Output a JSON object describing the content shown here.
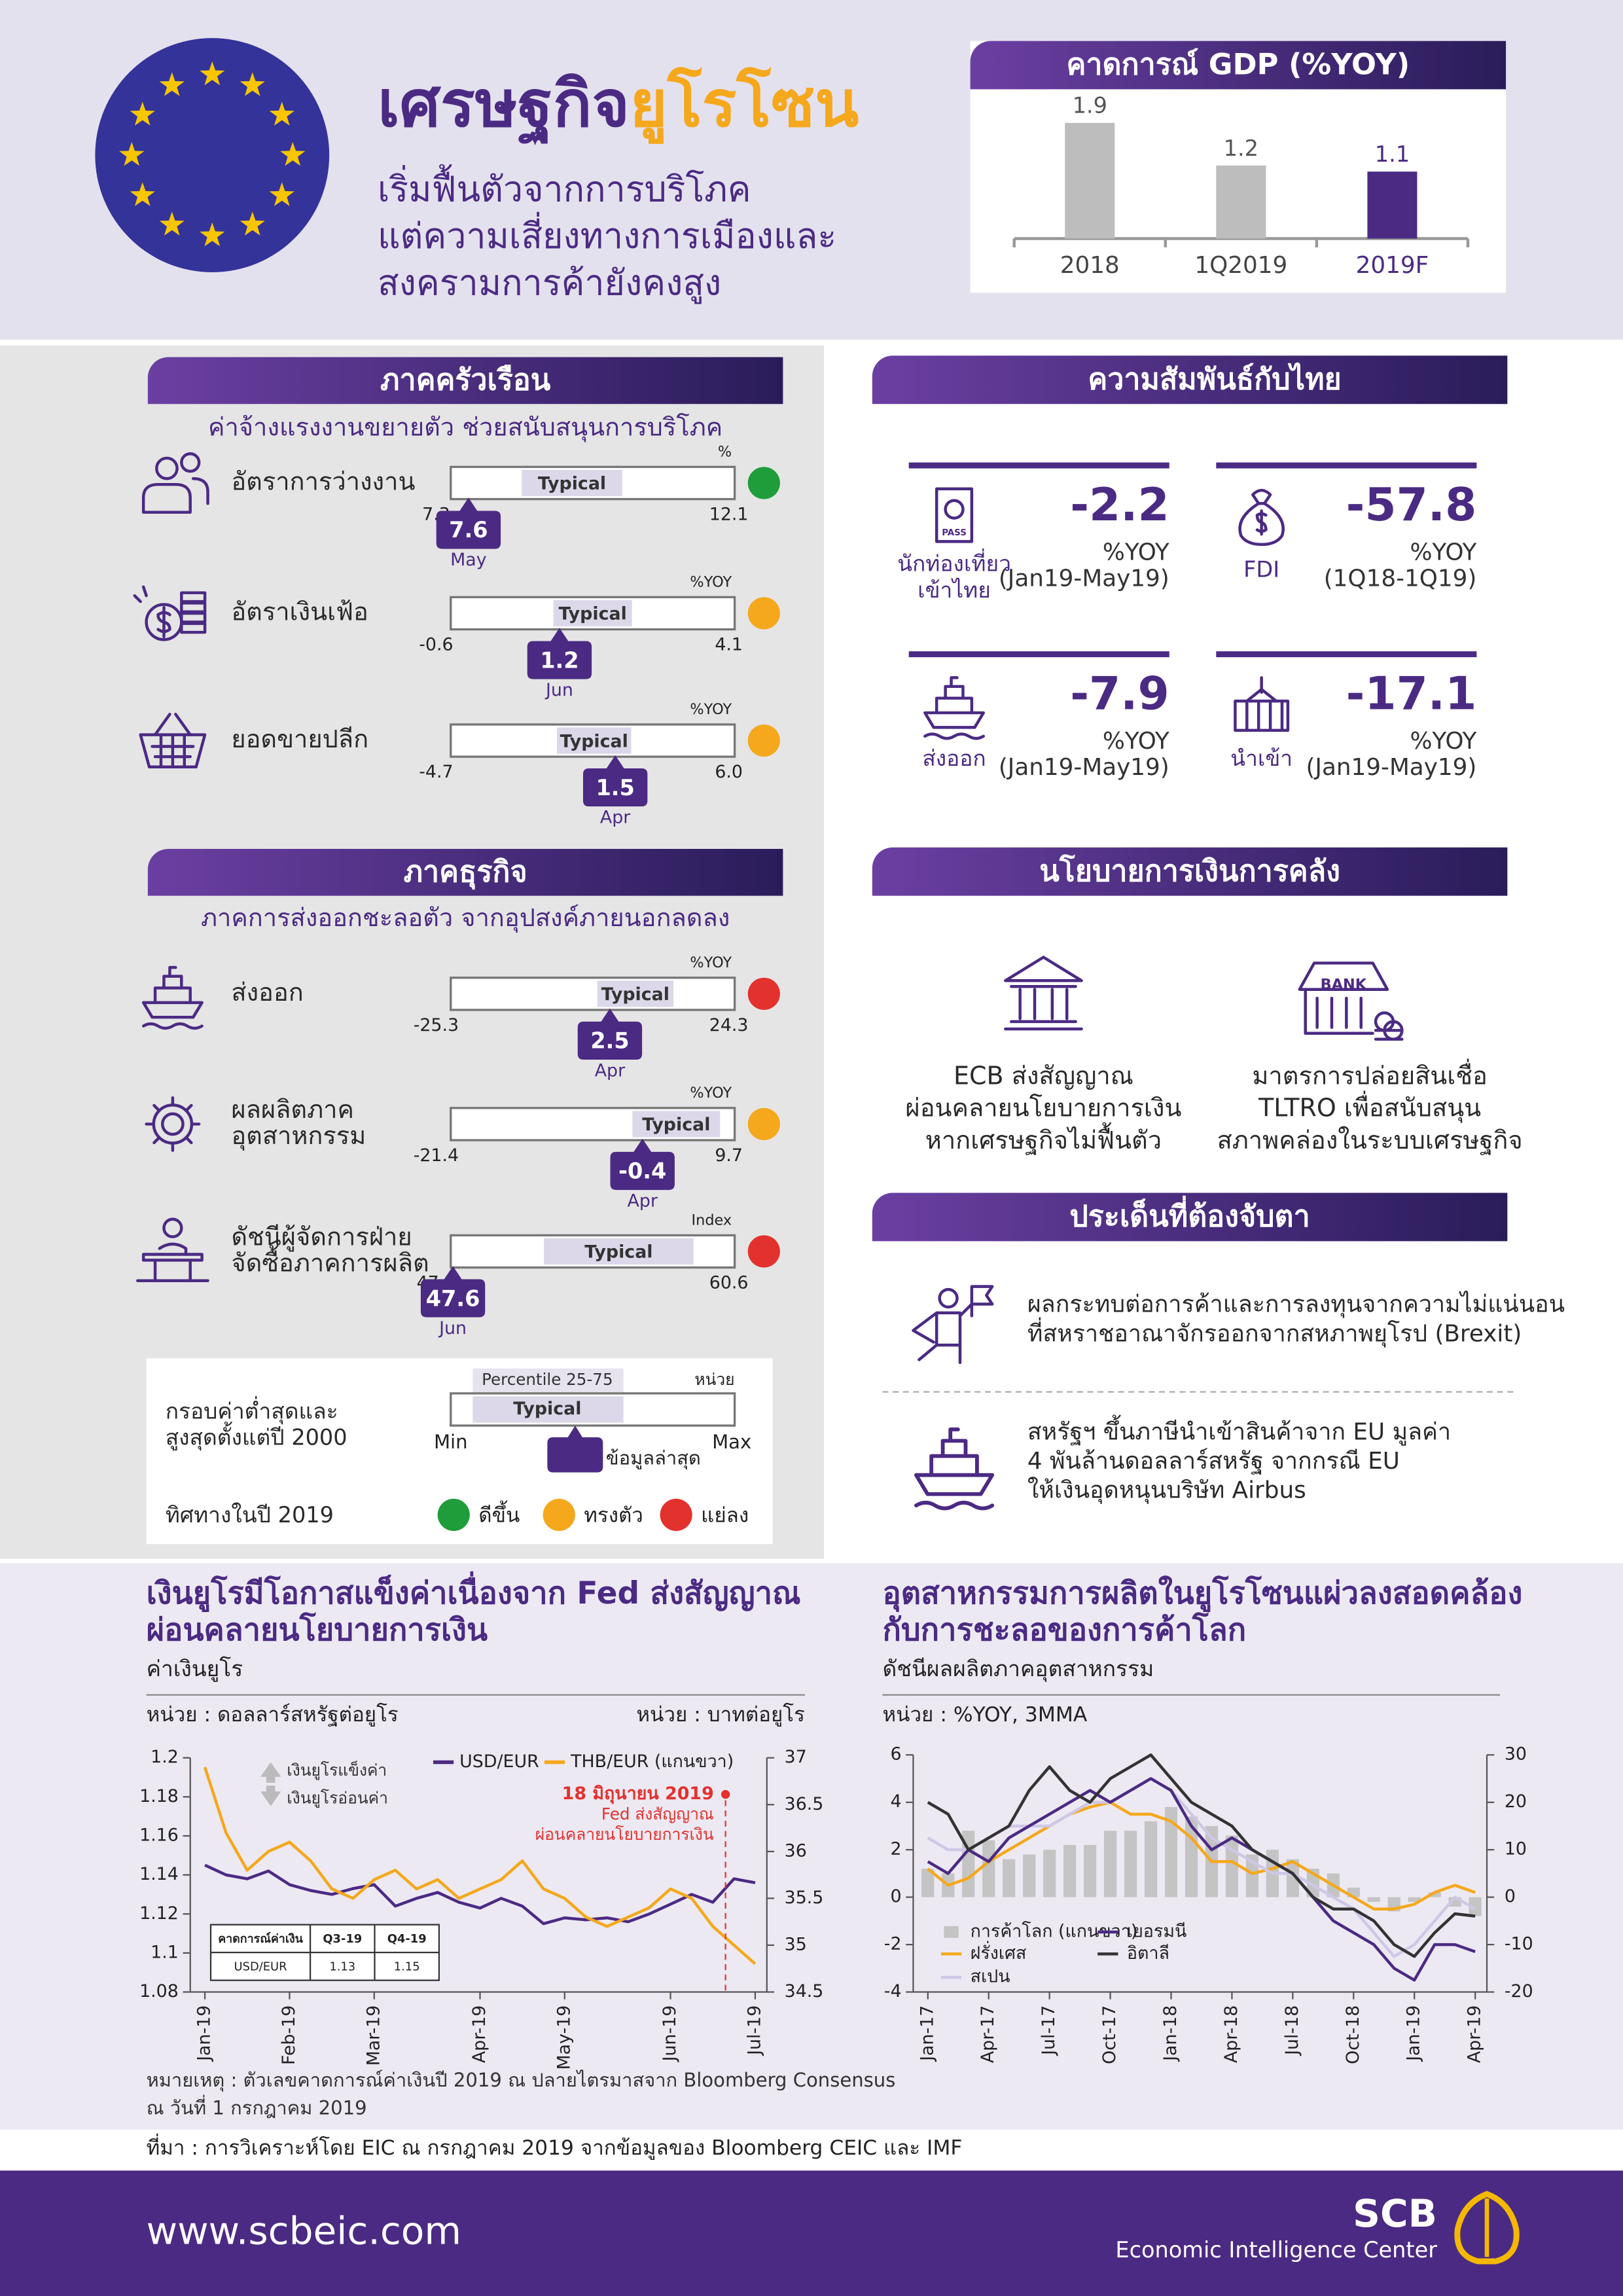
{
  "header": {
    "title_part1": "เศรษฐกิจ",
    "title_part2": "ยูโรโซน",
    "subtitle": [
      "เริ่มฟื้นตัวจากการบริโภค",
      "แต่ความเสี่ยงทางการเมืองและ",
      "สงครามการค้ายังคงสูง"
    ]
  },
  "chart_data": [
    {
      "type": "bar",
      "title": "คาดการณ์ GDP (%YOY)",
      "categories": [
        "2018",
        "1Q2019",
        "2019F"
      ],
      "values": [
        1.9,
        1.2,
        1.1
      ],
      "colors": [
        "#bdbdbd",
        "#bdbdbd",
        "#4b2a83"
      ]
    },
    {
      "type": "line",
      "title": [
        "เงินยูโรมีโอกาสแข็งค่าเนื่องจาก Fed ส่งสัญญาณ",
        "ผ่อนคลายนโยบายการเงิน"
      ],
      "subtitle": "ค่าเงินยูโร",
      "y_unit": "หน่วย :  ดอลลาร์สหรัฐต่อยูโร",
      "y2_unit": "หน่วย : บาทต่อยูโร",
      "categories": [
        "Jan-19",
        null,
        null,
        null,
        "Feb-19",
        null,
        null,
        null,
        "Mar-19",
        null,
        null,
        null,
        null,
        "Apr-19",
        null,
        null,
        null,
        "May-19",
        null,
        null,
        null,
        null,
        "Jun-19",
        null,
        null,
        null,
        "Jul-19"
      ],
      "series": [
        {
          "name": "USD/EUR",
          "color": "#4b2a83",
          "values": [
            1.145,
            1.14,
            1.138,
            1.142,
            1.135,
            1.132,
            1.13,
            1.133,
            1.135,
            1.124,
            1.128,
            1.131,
            1.126,
            1.123,
            1.128,
            1.124,
            1.115,
            1.118,
            1.117,
            1.118,
            1.116,
            1.12,
            1.125,
            1.13,
            1.126,
            1.138,
            1.136
          ]
        },
        {
          "name": "THB/EUR (แกนขวา)",
          "color": "#f5a81c",
          "axis": "y2",
          "values": [
            36.9,
            36.2,
            35.8,
            36.0,
            36.1,
            35.9,
            35.6,
            35.5,
            35.7,
            35.8,
            35.6,
            35.7,
            35.5,
            35.6,
            35.7,
            35.9,
            35.6,
            35.5,
            35.3,
            35.2,
            35.3,
            35.4,
            35.6,
            35.5,
            35.2,
            35.0,
            34.8
          ]
        }
      ],
      "ylim": [
        1.08,
        1.2
      ],
      "yticks": [
        1.08,
        1.1,
        1.12,
        1.14,
        1.16,
        1.18,
        1.2
      ],
      "y2lim": [
        34.5,
        37
      ],
      "y2ticks": [
        34.5,
        35,
        35.5,
        36,
        36.5,
        37
      ],
      "direction_labels": [
        "เงินยูโรแข็งค่า",
        "เงินยูโรอ่อนค่า"
      ],
      "annotation": {
        "date": "18 มิถุนายน 2019",
        "text": [
          "Fed ส่งสัญญาณ",
          "ผ่อนคลายนโยบายการเงิน"
        ]
      },
      "forecast_table": {
        "header": [
          "คาดการณ์ค่าเงิน",
          "Q3-19",
          "Q4-19"
        ],
        "rows": [
          [
            "USD/EUR",
            1.13,
            1.15
          ]
        ]
      },
      "note": [
        "หมายเหตุ : ตัวเลขคาดการณ์ค่าเงินปี 2019 ณ ปลายไตรมาสจาก Bloomberg Consensus",
        "ณ วันที่ 1 กรกฎาคม 2019"
      ]
    },
    {
      "type": "line",
      "title": [
        "อุตสาหกรรมการผลิตในยูโรโซนแผ่วลงสอดคล้อง",
        "กับการชะลอของการค้าโลก"
      ],
      "subtitle": "ดัชนีผลผลิตภาคอุตสาหกรรม",
      "y_unit": "หน่วย : %YOY, 3MMA",
      "categories": [
        "Jan-17",
        null,
        null,
        "Apr-17",
        null,
        null,
        "Jul-17",
        null,
        null,
        "Oct-17",
        null,
        null,
        "Jan-18",
        null,
        null,
        "Apr-18",
        null,
        null,
        "Jul-18",
        null,
        null,
        "Oct-18",
        null,
        null,
        "Jan-19",
        null,
        null,
        "Apr-19"
      ],
      "series": [
        {
          "name": "การค้าโลก (แกนขวา)",
          "color": "#c4c4c4",
          "axis": "y2",
          "type": "bar",
          "values": [
            6,
            5,
            14,
            12,
            8,
            9,
            10,
            11,
            11,
            14,
            14,
            16,
            19,
            17,
            15,
            13,
            9,
            10,
            8,
            6,
            5,
            2,
            -1,
            -3,
            -1,
            1,
            -2,
            -4
          ]
        },
        {
          "name": "ฝรั่งเศส",
          "color": "#f5a81c",
          "values": [
            1.2,
            0.5,
            0.8,
            1.5,
            2,
            2.5,
            3,
            3.5,
            3.8,
            4,
            3.5,
            3.5,
            3.2,
            2.5,
            1.5,
            1.5,
            1,
            1.2,
            1.5,
            1,
            0.5,
            0,
            -0.5,
            -0.5,
            -0.3,
            0.2,
            0.5,
            0.2
          ]
        },
        {
          "name": "สเปน",
          "color": "#cfc7e6",
          "values": [
            2.5,
            2,
            2,
            2.5,
            3,
            3,
            3,
            3.5,
            4,
            4,
            4.5,
            5,
            4.5,
            3.5,
            2.5,
            2,
            1.5,
            1,
            1,
            0.5,
            0,
            -0.5,
            -1.5,
            -2.5,
            -2,
            -1,
            0,
            -0.5
          ]
        },
        {
          "name": "เยอรมนี",
          "color": "#4b2a83",
          "values": [
            1.5,
            1,
            2,
            1.5,
            2.5,
            3,
            3.5,
            4,
            4.5,
            4,
            4.5,
            5,
            4.5,
            3,
            2,
            2.5,
            2,
            1.5,
            1,
            0,
            -1,
            -1.5,
            -2,
            -3,
            -3.5,
            -2,
            -2,
            -2.3
          ]
        },
        {
          "name": "อิตาลี",
          "color": "#333333",
          "values": [
            4,
            3.5,
            2,
            2.5,
            3,
            4.5,
            5.5,
            4.5,
            4,
            5,
            5.5,
            6,
            5,
            4,
            3.5,
            3,
            2,
            1.5,
            1,
            0,
            -0.5,
            -0.5,
            -1,
            -2,
            -2.5,
            -1.5,
            -0.7,
            -0.8
          ]
        }
      ],
      "ylim": [
        -4,
        6
      ],
      "yticks": [
        -4,
        -2,
        0,
        2,
        4,
        6
      ],
      "y2lim": [
        -20,
        30
      ],
      "y2ticks": [
        -20,
        -10,
        0,
        10,
        20,
        30
      ]
    }
  ],
  "gauge_typical_label": "Typical",
  "household": {
    "title": "ภาคครัวเรือน",
    "subtitle": "ค่าจ้างแรงงานขยายตัว ช่วยสนับสนุนการบริโภค",
    "gauges": [
      {
        "label": [
          "อัตราการว่างงาน"
        ],
        "unit": "%",
        "min": 7.3,
        "max": 12.1,
        "typical": [
          8.5,
          10.2
        ],
        "value": 7.6,
        "period": "May",
        "color": "#1f9d3a"
      },
      {
        "label": [
          "อัตราเงินเฟ้อ"
        ],
        "unit": "%YOY",
        "min": -0.6,
        "max": 4.1,
        "typical": [
          1.1,
          2.4
        ],
        "value": 1.2,
        "period": "Jun",
        "color": "#f5a81c"
      },
      {
        "label": [
          "ยอดขายปลีก"
        ],
        "unit": "%YOY",
        "min": -4.7,
        "max": {
          "value": 6,
          "label": "6.0"
        },
        "typical": [
          -0.7,
          2.1
        ],
        "value": 1.5,
        "period": "Apr",
        "color": "#f5a81c"
      }
    ]
  },
  "business": {
    "title": "ภาคธุรกิจ",
    "subtitle": "ภาคการส่งออกชะลอตัว จากอุปสงค์ภายนอกลดลง",
    "gauges": [
      {
        "label": [
          "ส่งออก"
        ],
        "unit": "%YOY",
        "min": -25.3,
        "max": 24.3,
        "typical": [
          0.3,
          13.6
        ],
        "value": 2.5,
        "period": "Apr",
        "color": "#e3312d"
      },
      {
        "label": [
          "ผลผลิตภาค",
          "อุตสาหกรรม"
        ],
        "unit": "%YOY",
        "min": -21.4,
        "max": 9.7,
        "typical": [
          -1.5,
          8.1
        ],
        "value": -0.4,
        "period": "Apr",
        "color": "#f5a81c"
      },
      {
        "label": [
          "ดัชนีผู้จัดการฝ่าย",
          "จัดซื้อภาคการผลิต"
        ],
        "unit": "Index",
        "min": 47.5,
        "max": 60.6,
        "typical": [
          51.8,
          58.7
        ],
        "value": 47.6,
        "period": "Jun",
        "color": "#e3312d"
      }
    ]
  },
  "gauge_legend": {
    "range_label": [
      "กรอบค่าต่ำสุดและ",
      "สูงสุดตั้งแต่ปี 2000"
    ],
    "percentile": "Percentile 25-75",
    "unit": "หน่วย",
    "min": "Min",
    "max": "Max",
    "latest": "ข้อมูลล่าสุด",
    "direction_label": "ทิศทางในปี 2019",
    "directions": [
      {
        "label": "ดีขึ้น",
        "color": "#1f9d3a"
      },
      {
        "label": "ทรงตัว",
        "color": "#f5a81c"
      },
      {
        "label": "แย่ลง",
        "color": "#e3312d"
      }
    ]
  },
  "thailand": {
    "title": "ความสัมพันธ์กับไทย",
    "passport_text": "PASS",
    "stats": [
      {
        "label": [
          "นักท่องเที่ยว",
          "เข้าไทย"
        ],
        "value": -2.2,
        "unit": "%YOY",
        "period": "(Jan19-May19)"
      },
      {
        "label": [
          "FDI"
        ],
        "value": -57.8,
        "unit": "%YOY",
        "period": "(1Q18-1Q19)"
      },
      {
        "label": [
          "ส่งออก"
        ],
        "value": -7.9,
        "unit": "%YOY",
        "period": "(Jan19-May19)"
      },
      {
        "label": [
          "นำเข้า"
        ],
        "value": -17.1,
        "unit": "%YOY",
        "period": "(Jan19-May19)"
      }
    ]
  },
  "policy": {
    "title": "นโยบายการเงินการคลัง",
    "bank_text": "BANK",
    "items": [
      [
        "ECB ส่งสัญญาณ",
        "ผ่อนคลายนโยบายการเงิน",
        "หากเศรษฐกิจไม่ฟื้นตัว"
      ],
      [
        "มาตรการปล่อยสินเชื่อ",
        "TLTRO เพื่อสนับสนุน",
        "สภาพคล่องในระบบเศรษฐกิจ"
      ]
    ]
  },
  "watch": {
    "title": "ประเด็นที่ต้องจับตา",
    "items": [
      [
        "ผลกระทบต่อการค้าและการลงทุนจากความไม่แน่นอน",
        "ที่สหราชอาณาจักรออกจากสหภาพยุโรป (Brexit)"
      ],
      [
        "สหรัฐฯ ขึ้นภาษีนำเข้าสินค้าจาก EU มูลค่า",
        "4 พันล้านดอลลาร์สหรัฐ จากกรณี EU",
        "ให้เงินอุดหนุนบริษัท Airbus"
      ]
    ]
  },
  "source": "ที่มา : การวิเคราะห์โดย EIC ณ กรกฎาคม 2019 จากข้อมูลของ Bloomberg CEIC และ IMF",
  "footer": {
    "url": "www.scbeic.com",
    "brand": "SCB",
    "brand_sub": "Economic Intelligence Center"
  }
}
